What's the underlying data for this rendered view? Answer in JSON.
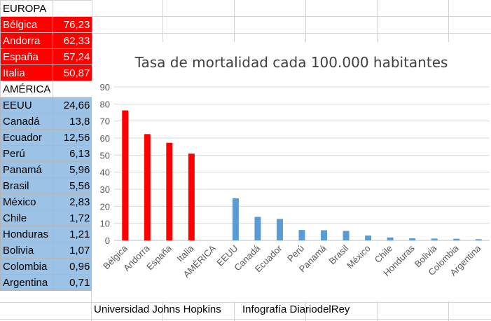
{
  "sheet": {
    "europe_header": "EUROPA",
    "europe": [
      {
        "name": "Bélgica",
        "value": "76,23"
      },
      {
        "name": "Andorra",
        "value": "62,33"
      },
      {
        "name": "España",
        "value": "57,24"
      },
      {
        "name": "Italia",
        "value": "50,87"
      }
    ],
    "america_header": "AMÉRICA",
    "america": [
      {
        "name": "EEUU",
        "value": "24,66"
      },
      {
        "name": "Canadá",
        "value": "13,8"
      },
      {
        "name": "Ecuador",
        "value": "12,56"
      },
      {
        "name": "Perú",
        "value": "6,13"
      },
      {
        "name": "Panamá",
        "value": "5,96"
      },
      {
        "name": "Brasil",
        "value": "5,56"
      },
      {
        "name": "México",
        "value": "2,83"
      },
      {
        "name": "Chile",
        "value": "1,72"
      },
      {
        "name": "Honduras",
        "value": "1,21"
      },
      {
        "name": "Bolivia",
        "value": "1,07"
      },
      {
        "name": "Colombia",
        "value": "0,96"
      },
      {
        "name": "Argentina",
        "value": "0,71"
      }
    ]
  },
  "footer": {
    "source": "Universidad Johns Hopkins",
    "credit": "Infografía DiariodelRey"
  },
  "colors": {
    "europe": "#ff0000",
    "america": "#5b9bd5",
    "america_cells": "#9cc2e5"
  },
  "chart_data": {
    "type": "bar",
    "title": "Tasa de mortalidad cada 100.000 habitantes",
    "categories": [
      "Bélgica",
      "Andorra",
      "España",
      "Italia",
      "AMÉRICA",
      "EEUU",
      "Canadá",
      "Ecuador",
      "Perú",
      "Panamá",
      "Brasil",
      "México",
      "Chile",
      "Honduras",
      "Bolivia",
      "Colombia",
      "Argentina"
    ],
    "values": [
      76.23,
      62.33,
      57.24,
      50.87,
      null,
      24.66,
      13.8,
      12.56,
      6.13,
      5.96,
      5.56,
      2.83,
      1.72,
      1.21,
      1.07,
      0.96,
      0.71
    ],
    "bar_colors": [
      "#ff0000",
      "#ff0000",
      "#ff0000",
      "#ff0000",
      "#ff0000",
      "#5b9bd5",
      "#5b9bd5",
      "#5b9bd5",
      "#5b9bd5",
      "#5b9bd5",
      "#5b9bd5",
      "#5b9bd5",
      "#5b9bd5",
      "#5b9bd5",
      "#5b9bd5",
      "#5b9bd5",
      "#5b9bd5"
    ],
    "ylim": [
      0,
      90
    ],
    "yticks": [
      0,
      10,
      20,
      30,
      40,
      50,
      60,
      70,
      80,
      90
    ],
    "grid": true,
    "xlabel": "",
    "ylabel": ""
  }
}
